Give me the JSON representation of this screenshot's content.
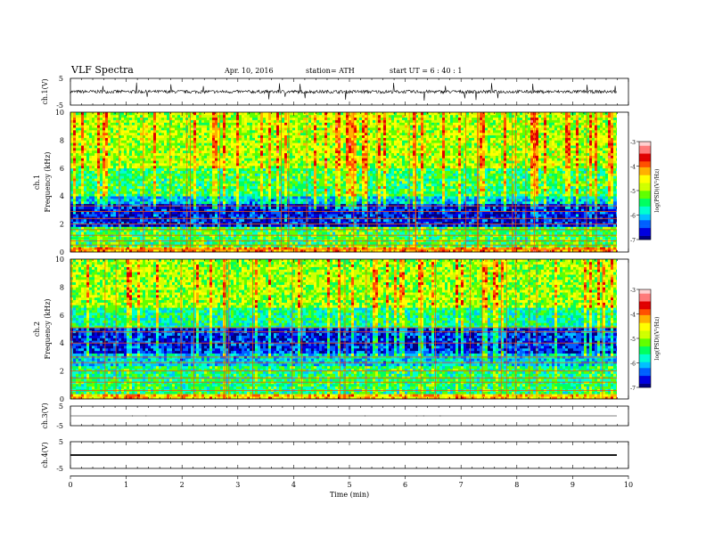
{
  "header": {
    "title": "VLF  Spectra",
    "date": "Apr. 10, 2016",
    "station": "station= ATH",
    "start": "start  UT  =   6  : 40 : 1"
  },
  "chart_data": [
    {
      "type": "line",
      "panel": "ch1-waveform",
      "ylabel": "ch.1(V)",
      "ylim": [
        -5,
        5
      ],
      "yticks": [
        "5",
        "-5"
      ],
      "description_values": {
        "baseline_v": 0.0,
        "noise_amp_v": 1.2,
        "spike_amp_v": 3.5
      }
    },
    {
      "type": "heatmap",
      "panel": "ch1-spectrogram",
      "ylabel_lines": [
        "ch.1",
        "Frequency  (kHz)"
      ],
      "ylim": [
        0,
        10
      ],
      "yticks": [
        "0",
        "2",
        "4",
        "6",
        "8",
        "10"
      ],
      "colorbar": {
        "label": "log(PSD)(V²/Hz)",
        "ticks": [
          "-3",
          "-4",
          "-5",
          "-6",
          "-7"
        ],
        "range": [
          -7,
          -3
        ]
      },
      "x_end_min": 9.8,
      "bands_khz": [
        {
          "from": 0,
          "to": 0.35,
          "level": -4.2
        },
        {
          "from": 0.35,
          "to": 1.7,
          "level": -5.4
        },
        {
          "from": 1.7,
          "to": 3.4,
          "level": -6.7
        },
        {
          "from": 3.4,
          "to": 4.0,
          "level": -6.0
        },
        {
          "from": 4.0,
          "to": 6.0,
          "level": -5.4
        },
        {
          "from": 6.0,
          "to": 10.0,
          "level": -4.9
        }
      ],
      "lines_khz": [
        0.2,
        0.5,
        0.8,
        1.2,
        1.6,
        2.0,
        2.4,
        2.9,
        3.3
      ]
    },
    {
      "type": "heatmap",
      "panel": "ch2-spectrogram",
      "ylabel_lines": [
        "ch.2",
        "Frequency  (kHz)"
      ],
      "ylim": [
        0,
        10
      ],
      "yticks": [
        "0",
        "2",
        "4",
        "6",
        "8",
        "10"
      ],
      "colorbar": {
        "label": "log(PSD)(V²/Hz)",
        "ticks": [
          "-3",
          "-4",
          "-5",
          "-6",
          "-7"
        ],
        "range": [
          -7,
          -3
        ]
      },
      "x_end_min": 9.8,
      "bands_khz": [
        {
          "from": 0,
          "to": 0.3,
          "level": -4.4
        },
        {
          "from": 0.3,
          "to": 2.2,
          "level": -5.5
        },
        {
          "from": 2.2,
          "to": 3.2,
          "level": -6.0
        },
        {
          "from": 3.2,
          "to": 5.0,
          "level": -6.6
        },
        {
          "from": 5.0,
          "to": 6.5,
          "level": -5.6
        },
        {
          "from": 6.5,
          "to": 10.0,
          "level": -5.0
        }
      ],
      "lines_khz": [
        0.6,
        1.2,
        1.5,
        2.0,
        2.6,
        3.0,
        4.0,
        4.8,
        5.1
      ]
    },
    {
      "type": "line",
      "panel": "ch3-waveform",
      "ylabel": "ch.3(V)",
      "ylim": [
        -5,
        5
      ],
      "yticks": [
        "5",
        "-5"
      ],
      "description_values": {
        "baseline_v": 0.0
      }
    },
    {
      "type": "line",
      "panel": "ch4-waveform",
      "ylabel": "ch.4(V)",
      "ylim": [
        -5,
        5
      ],
      "yticks": [
        "5",
        "-5"
      ],
      "description_values": {
        "baseline_v": 0.0,
        "band_v": 0.3
      }
    }
  ],
  "time_axis": {
    "label": "Time  (min)",
    "range": [
      0,
      10
    ],
    "ticks": [
      "0",
      "1",
      "2",
      "3",
      "4",
      "5",
      "6",
      "7",
      "8",
      "9",
      "10"
    ]
  },
  "colors": {
    "colormap": [
      "#000080",
      "#0000e0",
      "#0060ff",
      "#00c0ff",
      "#00ffd0",
      "#00ff60",
      "#60ff00",
      "#d0ff00",
      "#ffff00",
      "#ffb000",
      "#ff5000",
      "#e00000",
      "#ff7a7a",
      "#ffd0d0"
    ]
  }
}
